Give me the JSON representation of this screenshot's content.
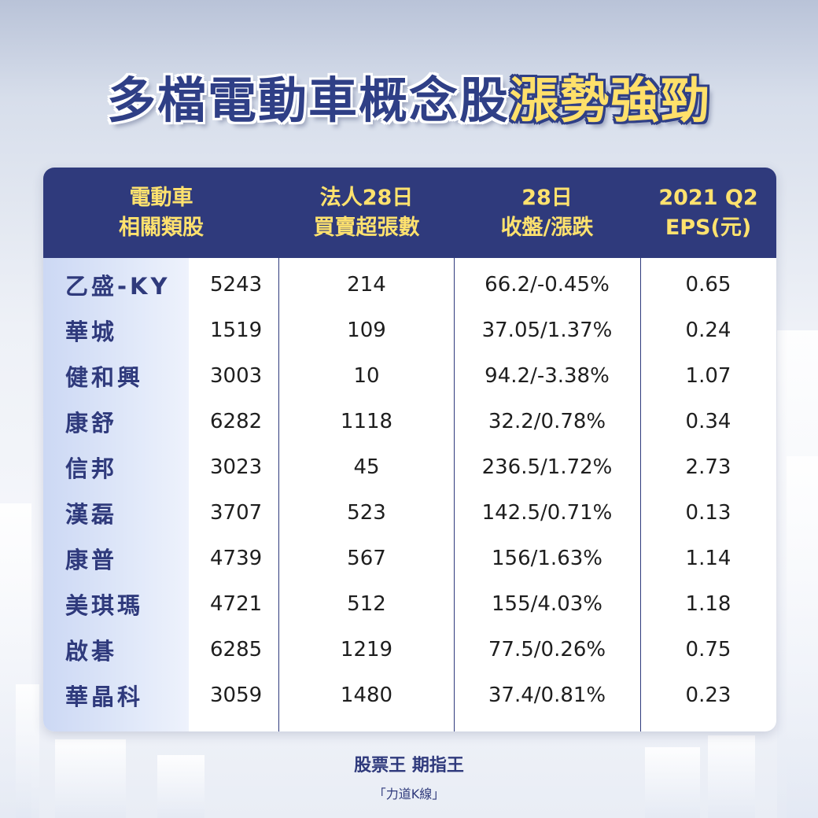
{
  "title": {
    "main": "多檔電動車概念股",
    "accent": "漲勢強勁"
  },
  "colors": {
    "header_bg": "#2f3a7c",
    "header_text": "#ffe26e",
    "accent_title": "#ffe06a",
    "name_text": "#2f3a7c"
  },
  "table": {
    "headers": [
      {
        "line1": "電動車",
        "line2": "相關類股"
      },
      {
        "line1": "法人28日",
        "line2": "買賣超張數"
      },
      {
        "line1": "28日",
        "line2": "收盤/漲跌"
      },
      {
        "line1": "2021 Q2",
        "line2": "EPS(元)"
      }
    ],
    "rows": [
      {
        "name": "乙盛-KY",
        "code": "5243",
        "net": "214",
        "close": "66.2/-0.45%",
        "eps": "0.65"
      },
      {
        "name": "華城",
        "code": "1519",
        "net": "109",
        "close": "37.05/1.37%",
        "eps": "0.24"
      },
      {
        "name": "健和興",
        "code": "3003",
        "net": "10",
        "close": "94.2/-3.38%",
        "eps": "1.07"
      },
      {
        "name": "康舒",
        "code": "6282",
        "net": "1118",
        "close": "32.2/0.78%",
        "eps": "0.34"
      },
      {
        "name": "信邦",
        "code": "3023",
        "net": "45",
        "close": "236.5/1.72%",
        "eps": "2.73"
      },
      {
        "name": "漢磊",
        "code": "3707",
        "net": "523",
        "close": "142.5/0.71%",
        "eps": "0.13"
      },
      {
        "name": "康普",
        "code": "4739",
        "net": "567",
        "close": "156/1.63%",
        "eps": "1.14"
      },
      {
        "name": "美琪瑪",
        "code": "4721",
        "net": "512",
        "close": "155/4.03%",
        "eps": "1.18"
      },
      {
        "name": "啟碁",
        "code": "6285",
        "net": "1219",
        "close": "77.5/0.26%",
        "eps": "0.75"
      },
      {
        "name": "華晶科",
        "code": "3059",
        "net": "1480",
        "close": "37.4/0.81%",
        "eps": "0.23"
      }
    ]
  },
  "footer": {
    "brand": "股票王 期指王",
    "program": "「力道K線」"
  }
}
